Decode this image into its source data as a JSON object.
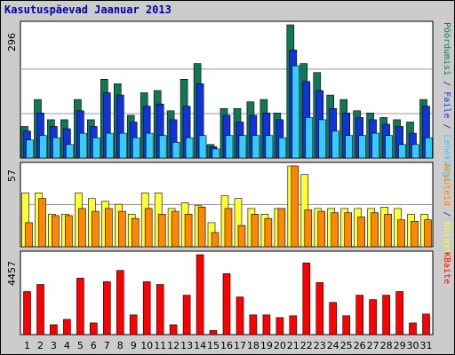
{
  "chart_data": [
    {
      "type": "bar",
      "title": "Kasutuspäevad Jaanuar 2013",
      "panel": "top",
      "ymax_label": "296",
      "categories": [
        "1",
        "2",
        "3",
        "4",
        "5",
        "6",
        "7",
        "8",
        "9",
        "10",
        "11",
        "12",
        "13",
        "14",
        "15",
        "16",
        "17",
        "18",
        "19",
        "20",
        "21",
        "22",
        "23",
        "24",
        "25",
        "26",
        "27",
        "28",
        "29",
        "30",
        "31"
      ],
      "weekend_days": [
        "5",
        "6",
        "12",
        "13",
        "19",
        "20",
        "26",
        "27"
      ],
      "series": [
        {
          "name": "Pöördumisi",
          "color": "#117755",
          "values": [
            70,
            130,
            85,
            85,
            130,
            85,
            175,
            165,
            95,
            145,
            150,
            105,
            175,
            210,
            30,
            110,
            110,
            125,
            130,
            100,
            296,
            210,
            190,
            140,
            130,
            105,
            100,
            90,
            85,
            80,
            130
          ]
        },
        {
          "name": "Faile",
          "color": "#1133dd",
          "values": [
            60,
            100,
            70,
            65,
            105,
            70,
            145,
            140,
            80,
            115,
            120,
            85,
            115,
            165,
            25,
            95,
            80,
            95,
            100,
            85,
            240,
            170,
            150,
            110,
            100,
            90,
            85,
            75,
            70,
            55,
            115
          ]
        },
        {
          "name": "Lehekülgi",
          "color": "#33ccff",
          "values": [
            40,
            50,
            45,
            30,
            55,
            45,
            55,
            55,
            45,
            55,
            50,
            35,
            45,
            50,
            20,
            50,
            50,
            50,
            50,
            45,
            205,
            90,
            85,
            60,
            50,
            50,
            55,
            50,
            30,
            30,
            45
          ]
        }
      ],
      "side_label_parts": [
        {
          "text": "Pöördumisi",
          "color": "#117755"
        },
        {
          "text": " / ",
          "color": "#003399"
        },
        {
          "text": "Faile",
          "color": "#1133dd"
        },
        {
          "text": " / ",
          "color": "#003399"
        },
        {
          "text": "Lehekülgi",
          "color": "#33ccff"
        }
      ]
    },
    {
      "type": "bar",
      "panel": "middle",
      "ymax_label": "57",
      "categories": [
        "1",
        "2",
        "3",
        "4",
        "5",
        "6",
        "7",
        "8",
        "9",
        "10",
        "11",
        "12",
        "13",
        "14",
        "15",
        "16",
        "17",
        "18",
        "19",
        "20",
        "21",
        "22",
        "23",
        "24",
        "25",
        "26",
        "27",
        "28",
        "29",
        "30",
        "31"
      ],
      "series": [
        {
          "name": "Külastusi",
          "color": "#ffff33",
          "values": [
            38,
            38,
            23,
            23,
            38,
            34,
            32,
            30,
            23,
            38,
            38,
            27,
            31,
            29,
            17,
            36,
            34,
            27,
            23,
            27,
            57,
            51,
            27,
            27,
            27,
            27,
            27,
            28,
            27,
            23,
            23
          ]
        },
        {
          "name": "Arvuteid",
          "color": "#ff8800",
          "values": [
            17,
            34,
            22,
            22,
            27,
            25,
            27,
            25,
            20,
            27,
            23,
            25,
            23,
            28,
            10,
            27,
            15,
            23,
            20,
            27,
            57,
            26,
            25,
            24,
            24,
            21,
            24,
            23,
            19,
            18,
            19
          ]
        }
      ],
      "side_label_parts": [
        {
          "text": "Arvuteid",
          "color": "#ff8800"
        },
        {
          "text": " / ",
          "color": "#003399"
        },
        {
          "text": "Külastusi",
          "color": "#ffff33"
        }
      ]
    },
    {
      "type": "bar",
      "panel": "bottom",
      "ymax_label": "4457",
      "categories": [
        "1",
        "2",
        "3",
        "4",
        "5",
        "6",
        "7",
        "8",
        "9",
        "10",
        "11",
        "12",
        "13",
        "14",
        "15",
        "16",
        "17",
        "18",
        "19",
        "20",
        "21",
        "22",
        "23",
        "24",
        "25",
        "26",
        "27",
        "28",
        "29",
        "30",
        "31"
      ],
      "series": [
        {
          "name": "KBaite",
          "color": "#ff0000",
          "values": [
            2400,
            2800,
            550,
            850,
            3150,
            650,
            2950,
            3580,
            1100,
            2950,
            2800,
            550,
            2200,
            4457,
            230,
            3400,
            2100,
            1100,
            1100,
            950,
            1050,
            4000,
            2900,
            1800,
            1050,
            2200,
            1950,
            2200,
            2400,
            650,
            1150
          ]
        }
      ],
      "side_label_parts": [
        {
          "text": "KBaite",
          "color": "#ff0000"
        }
      ]
    }
  ]
}
